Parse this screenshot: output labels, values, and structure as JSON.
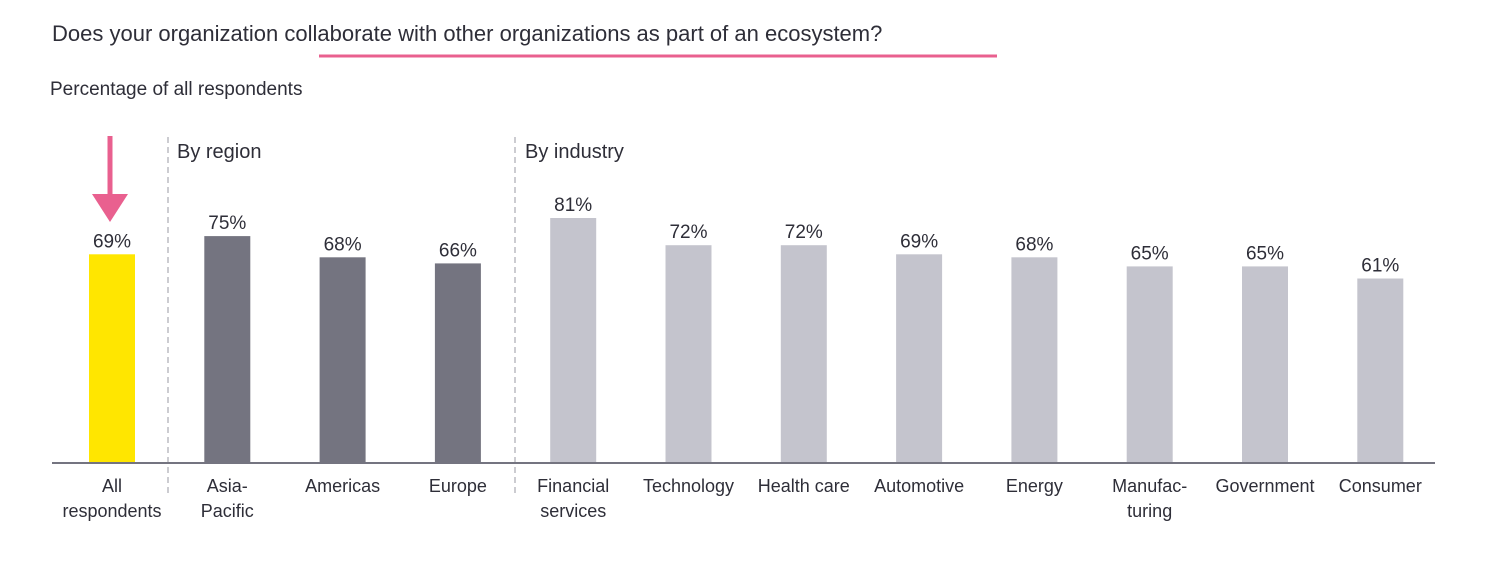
{
  "title": "Does your organization collaborate with other organizations as part of an ecosystem?",
  "subtitle": "Percentage of all respondents",
  "colors": {
    "highlight": "#ffe600",
    "region": "#747480",
    "industry": "#c4c4cd",
    "accent": "#e9608f",
    "axis": "#747480",
    "text": "#2e2e38"
  },
  "groups": [
    {
      "label": ""
    },
    {
      "label": "By region"
    },
    {
      "label": "By industry"
    }
  ],
  "chart_data": {
    "type": "bar",
    "title": "Does your organization collaborate with other organizations as part of an ecosystem?",
    "subtitle": "Percentage of all respondents",
    "categories": [
      [
        "All",
        "respondents"
      ],
      [
        "Asia-",
        "Pacific"
      ],
      [
        "Americas"
      ],
      [
        "Europe"
      ],
      [
        "Financial",
        "services"
      ],
      [
        "Technology"
      ],
      [
        "Health care"
      ],
      [
        "Automotive"
      ],
      [
        "Energy"
      ],
      [
        "Manufac-",
        "turing"
      ],
      [
        "Government"
      ],
      [
        "Consumer"
      ]
    ],
    "values": [
      69,
      75,
      68,
      66,
      81,
      72,
      72,
      69,
      68,
      65,
      65,
      61
    ],
    "value_labels": [
      "69%",
      "75%",
      "68%",
      "66%",
      "81%",
      "72%",
      "72%",
      "69%",
      "68%",
      "65%",
      "65%",
      "61%"
    ],
    "bar_groups": [
      0,
      1,
      1,
      1,
      2,
      2,
      2,
      2,
      2,
      2,
      2,
      2
    ],
    "group_names": [
      "",
      "By region",
      "By industry"
    ],
    "ylim": [
      0,
      100
    ],
    "xlabel": "",
    "ylabel": "",
    "grid": false,
    "legend": "none"
  }
}
